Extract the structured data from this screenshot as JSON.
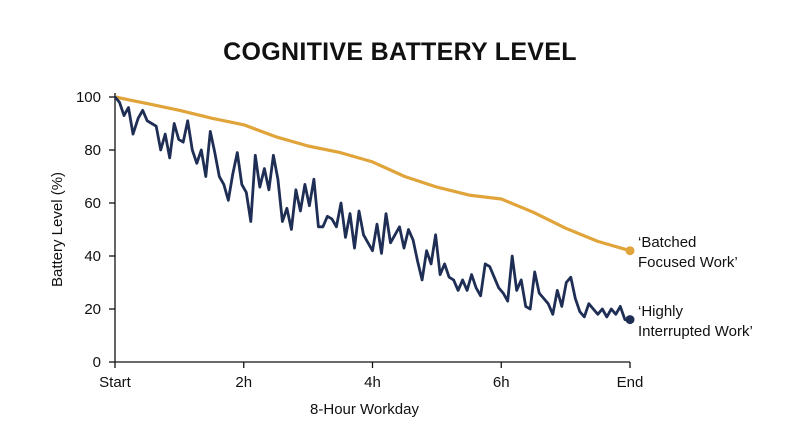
{
  "chart_data": {
    "type": "line",
    "title": "COGNITIVE BATTERY LEVEL",
    "xlabel": "8-Hour Workday",
    "ylabel": "Battery Level (%)",
    "xlim": [
      0,
      8
    ],
    "ylim": [
      0,
      100
    ],
    "x_ticks": [
      {
        "value": 0,
        "label": "Start"
      },
      {
        "value": 2,
        "label": "2h"
      },
      {
        "value": 4,
        "label": "4h"
      },
      {
        "value": 6,
        "label": "6h"
      },
      {
        "value": 8,
        "label": "End"
      }
    ],
    "y_ticks": [
      0,
      20,
      40,
      60,
      80,
      100
    ],
    "grid": false,
    "legend": "direct labels at line ends",
    "series": [
      {
        "name": "'Batched Focused Work'",
        "label_lines": [
          "‘Batched",
          "Focused Work’"
        ],
        "color": "#E0A43A",
        "end_marker": true,
        "x": [
          0,
          0.5,
          1,
          1.5,
          2,
          2.5,
          3,
          3.5,
          4,
          4.5,
          5,
          5.5,
          6,
          6.5,
          7,
          7.5,
          8
        ],
        "y": [
          100,
          97.5,
          95,
          92,
          89.5,
          85,
          81.5,
          79,
          75.5,
          70,
          66,
          63,
          61.5,
          56.5,
          50.5,
          45.5,
          42
        ]
      },
      {
        "name": "'Highly Interrupted Work'",
        "label_lines": [
          "‘Highly",
          "Interrupted Work’"
        ],
        "color": "#1F2E55",
        "end_marker": true,
        "x": [
          0,
          0.07,
          0.14,
          0.21,
          0.28,
          0.36,
          0.43,
          0.5,
          0.57,
          0.64,
          0.71,
          0.78,
          0.85,
          0.92,
          0.99,
          1.06,
          1.13,
          1.2,
          1.27,
          1.34,
          1.41,
          1.48,
          1.55,
          1.62,
          1.69,
          1.76,
          1.83,
          1.9,
          1.97,
          2.04,
          2.11,
          2.18,
          2.25,
          2.32,
          2.39,
          2.46,
          2.53,
          2.6,
          2.67,
          2.74,
          2.81,
          2.88,
          2.95,
          3.02,
          3.09,
          3.16,
          3.23,
          3.3,
          3.37,
          3.44,
          3.51,
          3.58,
          3.65,
          3.72,
          3.79,
          3.86,
          3.93,
          4.0,
          4.07,
          4.14,
          4.21,
          4.28,
          4.35,
          4.42,
          4.49,
          4.56,
          4.63,
          4.7,
          4.77,
          4.84,
          4.91,
          4.98,
          5.05,
          5.12,
          5.19,
          5.26,
          5.33,
          5.4,
          5.47,
          5.54,
          5.61,
          5.68,
          5.75,
          5.82,
          5.89,
          5.96,
          6.03,
          6.1,
          6.17,
          6.24,
          6.31,
          6.38,
          6.45,
          6.52,
          6.59,
          6.66,
          6.73,
          6.8,
          6.87,
          6.94,
          7.01,
          7.08,
          7.15,
          7.22,
          7.29,
          7.36,
          7.43,
          7.5,
          7.57,
          7.64,
          7.71,
          7.78,
          7.85,
          7.92,
          8.0
        ],
        "y": [
          100,
          98,
          93,
          96,
          86,
          92,
          95,
          91,
          90,
          89,
          80,
          86,
          77,
          90,
          84,
          83,
          91,
          80,
          75,
          80,
          70,
          87,
          79,
          70,
          67,
          61,
          71,
          79,
          67,
          64,
          53,
          78,
          66,
          73,
          65,
          78,
          69,
          53,
          58,
          50,
          65,
          57,
          67,
          59,
          69,
          51,
          51,
          55,
          54,
          51,
          60,
          47,
          56,
          43,
          57,
          48,
          45,
          42,
          52,
          41,
          56,
          45,
          48,
          51,
          43,
          50,
          46,
          38,
          31,
          42,
          37,
          48,
          33,
          37,
          32,
          31,
          27,
          31,
          27,
          33,
          28,
          25,
          37,
          36,
          32,
          28,
          26,
          23,
          40,
          27,
          31,
          21,
          20,
          34,
          26,
          24,
          22,
          18,
          27,
          21,
          30,
          32,
          24,
          19,
          17,
          22,
          20,
          18,
          20,
          17,
          20,
          18,
          21,
          16,
          16
        ]
      }
    ]
  }
}
